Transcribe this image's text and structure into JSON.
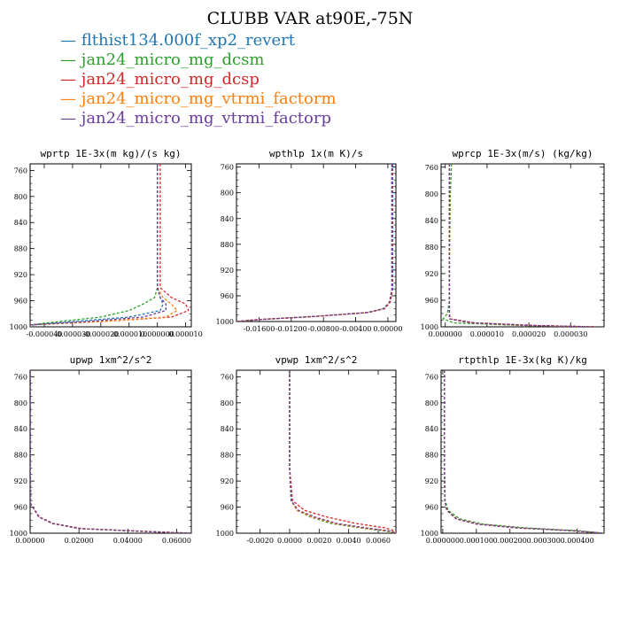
{
  "figure": {
    "title": "CLUBB VAR at90E,-75N",
    "legend": [
      {
        "label": "flthist134.000f_xp2_revert",
        "color": "#1f77b4"
      },
      {
        "label": "jan24_micro_mg_dcsm",
        "color": "#2ca02c"
      },
      {
        "label": "jan24_micro_mg_dcsp",
        "color": "#d62728"
      },
      {
        "label": "jan24_micro_mg_vtrmi_factorm",
        "color": "#ff7f0e"
      },
      {
        "label": "jan24_micro_mg_vtrmi_factorp",
        "color": "#6a3d9a"
      }
    ]
  },
  "chart_data": [
    {
      "type": "line",
      "title": "wprtp  1E-3x(m kg)/(s kg)",
      "xlim": [
        -4.5e-05,
        1.2e-05
      ],
      "ylim": [
        1000,
        750
      ],
      "yticks": [
        760,
        800,
        840,
        880,
        920,
        960,
        1000
      ],
      "xticks": [
        -4e-05,
        -3e-05,
        -2e-05,
        -1e-05,
        0.0,
        1e-05
      ],
      "xtick_labels": [
        "-0.000040",
        "-0.000030",
        "-0.000020",
        "-0.000010",
        "0.000000",
        "0.000010"
      ],
      "y": [
        750,
        800,
        900,
        940,
        955,
        965,
        975,
        985,
        992,
        997,
        1000
      ],
      "series": [
        {
          "color": "#1f77b4",
          "values": [
            0.0,
            0.0,
            0.0,
            0.0,
            1e-06,
            2e-06,
            1e-06,
            -1e-05,
            -3e-05,
            -4.4e-05,
            -4.5e-05
          ]
        },
        {
          "color": "#2ca02c",
          "values": [
            0.0,
            0.0,
            0.0,
            0.0,
            -1e-06,
            -5e-06,
            -1e-05,
            -2e-05,
            -3.5e-05,
            -4.5e-05,
            -4.5e-05
          ]
        },
        {
          "color": "#d62728",
          "values": [
            1e-06,
            1e-06,
            1e-06,
            1e-06,
            5e-06,
            1e-05,
            1.1e-05,
            5e-06,
            -2e-05,
            -4.5e-05,
            -4.5e-05
          ]
        },
        {
          "color": "#ff7f0e",
          "values": [
            0.0,
            0.0,
            0.0,
            0.0,
            2e-06,
            5e-06,
            7e-06,
            3e-06,
            -2e-05,
            -4.5e-05,
            -4.5e-05
          ]
        },
        {
          "color": "#6a3d9a",
          "values": [
            0.0,
            0.0,
            0.0,
            0.0,
            1e-06,
            3e-06,
            3e-06,
            -5e-06,
            -2.5e-05,
            -4.5e-05,
            -4.5e-05
          ]
        }
      ]
    },
    {
      "type": "line",
      "title": "wpthlp  1x(m K)/s",
      "xlim": [
        -0.0188,
        0.001
      ],
      "ylim": [
        1000,
        755
      ],
      "yticks": [
        760,
        800,
        840,
        880,
        920,
        960,
        1000
      ],
      "xticks": [
        -0.016,
        -0.012,
        -0.008,
        -0.004,
        0.0
      ],
      "xtick_labels": [
        "-0.01600",
        "-0.01200",
        "-0.00800",
        "-0.00400",
        "0.00000"
      ],
      "y": [
        755,
        800,
        900,
        950,
        970,
        980,
        986,
        992,
        997,
        1000
      ],
      "series": [
        {
          "color": "#1f77b4",
          "values": [
            0.0005,
            0.0005,
            0.0005,
            0.0005,
            0.0002,
            -0.0005,
            -0.0025,
            -0.009,
            -0.016,
            -0.0188
          ]
        },
        {
          "color": "#2ca02c",
          "values": [
            0.0005,
            0.0005,
            0.0005,
            0.0005,
            0.0002,
            -0.0006,
            -0.0026,
            -0.0091,
            -0.0161,
            -0.0188
          ]
        },
        {
          "color": "#d62728",
          "values": [
            0.0006,
            0.0006,
            0.0006,
            0.0006,
            0.0003,
            -0.0004,
            -0.0024,
            -0.0089,
            -0.016,
            -0.0188
          ]
        },
        {
          "color": "#ff7f0e",
          "values": [
            0.0005,
            0.0005,
            0.0005,
            0.0005,
            0.0002,
            -0.0005,
            -0.0025,
            -0.009,
            -0.016,
            -0.0188
          ]
        },
        {
          "color": "#6a3d9a",
          "values": [
            0.0005,
            0.0005,
            0.0005,
            0.0005,
            0.0002,
            -0.0005,
            -0.0025,
            -0.009,
            -0.016,
            -0.0188
          ]
        }
      ]
    },
    {
      "type": "line",
      "title": "wprcp  1E-3x(m/s) (kg/kg)",
      "xlim": [
        -1e-06,
        3.8e-05
      ],
      "ylim": [
        1000,
        755
      ],
      "yticks": [
        760,
        800,
        840,
        880,
        920,
        960,
        1000
      ],
      "xticks": [
        0.0,
        1e-05,
        2e-05,
        3e-05
      ],
      "xtick_labels": [
        "0.000000",
        "0.000010",
        "0.000020",
        "0.000030"
      ],
      "y": [
        755,
        800,
        900,
        960,
        980,
        988,
        994,
        998,
        1000
      ],
      "series": [
        {
          "color": "#1f77b4",
          "values": [
            1e-06,
            1e-06,
            1e-06,
            1e-06,
            1e-06,
            1e-06,
            6e-06,
            2e-05,
            3.6e-05
          ]
        },
        {
          "color": "#2ca02c",
          "values": [
            1.5e-06,
            1.2e-06,
            1e-06,
            1e-06,
            5e-07,
            -5e-07,
            2e-06,
            1.8e-05,
            3.6e-05
          ]
        },
        {
          "color": "#d62728",
          "values": [
            1e-06,
            1e-06,
            1e-06,
            1e-06,
            1e-06,
            1.2e-06,
            7e-06,
            2.2e-05,
            3.6e-05
          ]
        },
        {
          "color": "#ff7f0e",
          "values": [
            1e-06,
            1e-06,
            1e-06,
            1e-06,
            1e-06,
            1e-06,
            6e-06,
            2e-05,
            3.6e-05
          ]
        },
        {
          "color": "#6a3d9a",
          "values": [
            1e-06,
            1e-06,
            1e-06,
            1e-06,
            1e-06,
            1e-06,
            6.5e-06,
            2.1e-05,
            3.6e-05
          ]
        }
      ]
    },
    {
      "type": "line",
      "title": "upwp  1xm^2/s^2",
      "xlim": [
        0.0,
        0.066
      ],
      "ylim": [
        1000,
        750
      ],
      "yticks": [
        760,
        800,
        840,
        880,
        920,
        960,
        1000
      ],
      "xticks": [
        0.0,
        0.02,
        0.04,
        0.06
      ],
      "xtick_labels": [
        "0.00000",
        "0.02000",
        "0.04000",
        "0.06000"
      ],
      "y": [
        750,
        900,
        955,
        975,
        985,
        993,
        997,
        1000
      ],
      "series": [
        {
          "color": "#1f77b4",
          "values": [
            0.0001,
            0.0001,
            0.0002,
            0.0035,
            0.009,
            0.02,
            0.045,
            0.066
          ]
        },
        {
          "color": "#2ca02c",
          "values": [
            0.0001,
            0.0001,
            0.0002,
            0.0036,
            0.0092,
            0.021,
            0.045,
            0.066
          ]
        },
        {
          "color": "#d62728",
          "values": [
            0.0001,
            0.0001,
            0.0002,
            0.0038,
            0.0095,
            0.021,
            0.046,
            0.066
          ]
        },
        {
          "color": "#ff7f0e",
          "values": [
            0.0001,
            0.0001,
            0.0002,
            0.0035,
            0.009,
            0.02,
            0.045,
            0.066
          ]
        },
        {
          "color": "#6a3d9a",
          "values": [
            0.0001,
            0.0001,
            0.0002,
            0.0036,
            0.0091,
            0.0205,
            0.045,
            0.066
          ]
        }
      ]
    },
    {
      "type": "line",
      "title": "vpwp  1xm^2/s^2",
      "xlim": [
        -0.0036,
        0.0072
      ],
      "ylim": [
        1000,
        750
      ],
      "yticks": [
        760,
        800,
        840,
        880,
        920,
        960,
        1000
      ],
      "xticks": [
        -0.002,
        0.0,
        0.002,
        0.004,
        0.006
      ],
      "xtick_labels": [
        "-0.0020",
        "0.0000",
        "0.0020",
        "0.0040",
        "0.0060"
      ],
      "y": [
        750,
        900,
        950,
        965,
        975,
        985,
        992,
        997,
        1000
      ],
      "series": [
        {
          "color": "#1f77b4",
          "values": [
            0.0,
            0.0,
            0.0001,
            0.0005,
            0.0015,
            0.003,
            0.005,
            0.0068,
            0.0072
          ]
        },
        {
          "color": "#2ca02c",
          "values": [
            0.0,
            0.0,
            0.0001,
            0.0005,
            0.0014,
            0.0028,
            0.0048,
            0.0066,
            0.0072
          ]
        },
        {
          "color": "#d62728",
          "values": [
            0.0,
            0.0,
            0.0002,
            0.001,
            0.0025,
            0.0045,
            0.0065,
            0.0072,
            0.0072
          ]
        },
        {
          "color": "#ff7f0e",
          "values": [
            0.0,
            0.0,
            0.0001,
            0.0005,
            0.0015,
            0.003,
            0.005,
            0.0068,
            0.0072
          ]
        },
        {
          "color": "#6a3d9a",
          "values": [
            0.0,
            0.0,
            0.0001,
            0.0006,
            0.0017,
            0.0032,
            0.0052,
            0.0069,
            0.0072
          ]
        }
      ]
    },
    {
      "type": "line",
      "title": "rtpthlp  1E-3x(kg K)/kg",
      "xlim": [
        -5e-06,
        0.00048
      ],
      "ylim": [
        1000,
        750
      ],
      "yticks": [
        760,
        800,
        840,
        880,
        920,
        960,
        1000
      ],
      "xticks": [
        0.0,
        0.0001,
        0.0002,
        0.0003,
        0.0004
      ],
      "xtick_labels": [
        "0.000000",
        "0.000100",
        "0.000200",
        "0.000300",
        "0.000400"
      ],
      "y": [
        750,
        900,
        950,
        965,
        978,
        986,
        992,
        996,
        1000
      ],
      "series": [
        {
          "color": "#1f77b4",
          "values": [
            5e-06,
            5e-06,
            6e-06,
            1.2e-05,
            4e-05,
            0.0001,
            0.00022,
            0.00038,
            0.00048
          ]
        },
        {
          "color": "#2ca02c",
          "values": [
            5e-06,
            5e-06,
            7e-06,
            1.6e-05,
            5e-05,
            0.00012,
            0.00025,
            0.0004,
            0.00048
          ]
        },
        {
          "color": "#d62728",
          "values": [
            5e-06,
            5e-06,
            6e-06,
            1.3e-05,
            4.2e-05,
            0.000105,
            0.00023,
            0.00038,
            0.00048
          ]
        },
        {
          "color": "#ff7f0e",
          "values": [
            5e-06,
            5e-06,
            6e-06,
            1.2e-05,
            4e-05,
            0.0001,
            0.00022,
            0.00038,
            0.00048
          ]
        },
        {
          "color": "#6a3d9a",
          "values": [
            5e-06,
            5e-06,
            6e-06,
            1.2e-05,
            4e-05,
            0.0001,
            0.000225,
            0.00038,
            0.00048
          ]
        }
      ]
    }
  ]
}
